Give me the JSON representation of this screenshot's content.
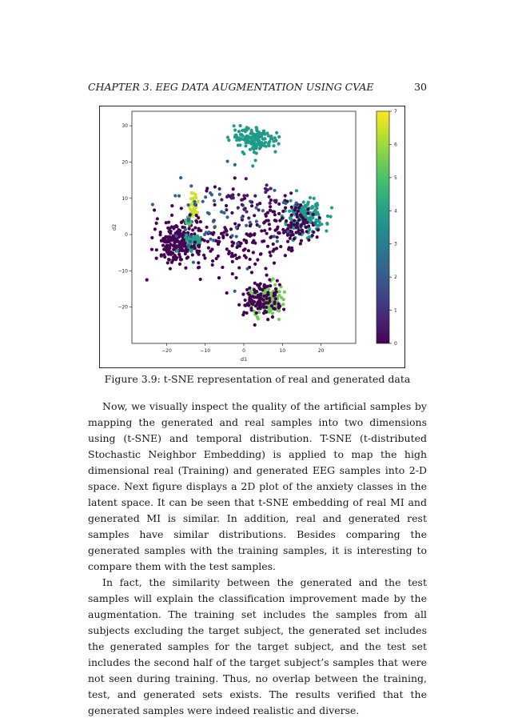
{
  "header": {
    "chapter_title": "CHAPTER 3.  EEG DATA AUGMENTATION USING CVAE",
    "page_number": "30"
  },
  "figure": {
    "caption": "Figure 3.9: t-SNE representation of real and generated data",
    "chart_data": {
      "type": "scatter",
      "xlabel": "d1",
      "ylabel": "d2",
      "xlim": [
        -29,
        29
      ],
      "ylim": [
        -30,
        34
      ],
      "x_ticks": [
        -20,
        -10,
        0,
        10,
        20
      ],
      "y_ticks": [
        -20,
        -10,
        0,
        10,
        20,
        30
      ],
      "x_tick_labels": [
        "−20",
        "−10",
        "0",
        "10",
        "20"
      ],
      "y_tick_labels": [
        "−20",
        "−10",
        "0",
        "10",
        "20",
        "30"
      ],
      "grid": false,
      "colormap": "viridis",
      "colorbar": {
        "range": [
          0,
          7
        ],
        "ticks": [
          0,
          1,
          2,
          3,
          4,
          5,
          6,
          7
        ],
        "tick_labels": [
          "0",
          "1",
          "2",
          "3",
          "4",
          "5",
          "6",
          "7"
        ]
      },
      "clusters": [
        {
          "center": [
            -17,
            -2
          ],
          "spread": [
            6,
            6
          ],
          "count": 230,
          "color_value": 0
        },
        {
          "center": [
            -13,
            -2
          ],
          "spread": [
            2,
            2
          ],
          "count": 55,
          "color_value": 4
        },
        {
          "center": [
            -13,
            8
          ],
          "spread": [
            1.2,
            3.5
          ],
          "count": 40,
          "color_value": 6.5
        },
        {
          "center": [
            -14,
            4
          ],
          "spread": [
            1,
            2
          ],
          "count": 15,
          "color_value": 5
        },
        {
          "center": [
            3,
            26
          ],
          "spread": [
            6,
            3.5
          ],
          "count": 150,
          "color_value": 3.8
        },
        {
          "center": [
            16,
            5
          ],
          "spread": [
            5,
            5
          ],
          "count": 170,
          "color_value": 3.8
        },
        {
          "center": [
            13,
            3
          ],
          "spread": [
            5,
            7
          ],
          "count": 80,
          "color_value": 0
        },
        {
          "center": [
            6,
            -18
          ],
          "spread": [
            4,
            4
          ],
          "count": 150,
          "color_value": 5.5
        },
        {
          "center": [
            4,
            -18
          ],
          "spread": [
            6,
            5
          ],
          "count": 110,
          "color_value": 0
        },
        {
          "center": [
            0,
            0
          ],
          "spread": [
            14,
            11
          ],
          "count": 180,
          "color_value": 0
        },
        {
          "center": [
            -5,
            5
          ],
          "spread": [
            16,
            13
          ],
          "count": 60,
          "color_value": 2.2
        },
        {
          "center": [
            2,
            10
          ],
          "spread": [
            8,
            5
          ],
          "count": 30,
          "color_value": 0.5
        }
      ]
    }
  },
  "paragraphs": [
    "Now, we visually inspect the quality of the artificial samples by mapping the generated and real samples into two dimensions using (t-SNE) and temporal distribution. T-SNE (t-distributed Stochastic Neighbor Embedding) is applied to map the high dimensional real (Training) and generated EEG samples into 2-D space. Next figure displays a 2D plot of the anxiety classes in the latent space. It can be seen that t-SNE embedding of real MI and generated MI is similar. In addition, real and generated rest samples have similar distributions. Besides comparing the generated samples with the training samples, it is interesting to compare them with the test samples.",
    "In fact, the similarity between the generated and the test samples will explain the classification improvement made by the augmentation. The training set includes the samples from all subjects excluding the target subject, the generated set includes the generated samples for the target subject, and the test set includes the second half of the target subject’s samples that were not seen during training. Thus, no overlap between the training, test, and generated sets exists. The results verified that the generated samples were indeed realistic and diverse."
  ]
}
